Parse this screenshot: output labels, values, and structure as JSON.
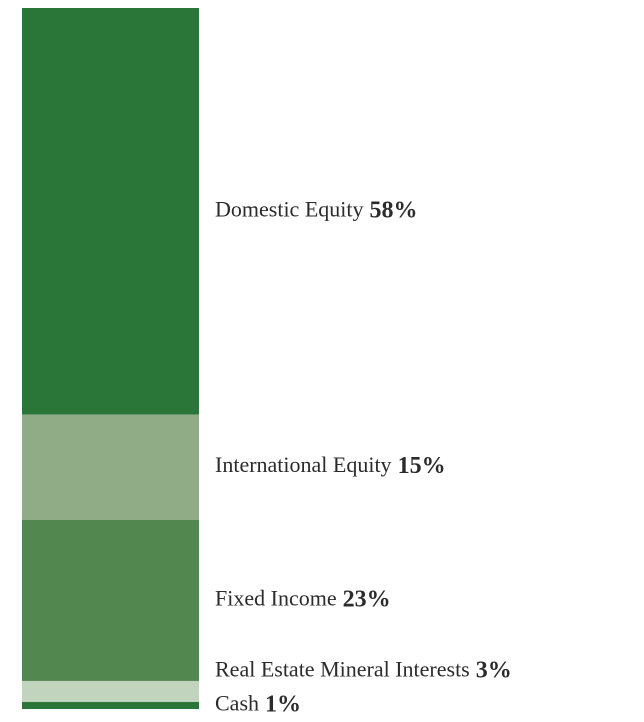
{
  "chart_data": {
    "type": "stacked-bar",
    "series": [
      {
        "name": "Domestic Equity",
        "color": "#2a7639",
        "values": [
          58
        ],
        "value_labels": [
          "58%"
        ]
      },
      {
        "name": "International Equity",
        "color": "#8fac86",
        "values": [
          15
        ],
        "value_labels": [
          "15%"
        ]
      },
      {
        "name": "Fixed Income",
        "color": "#52884f",
        "values": [
          23
        ],
        "value_labels": [
          "23%"
        ]
      },
      {
        "name": "Real Estate Mineral Interests",
        "color": "#c1d4bd",
        "values": [
          3
        ],
        "value_labels": [
          "3%"
        ]
      },
      {
        "name": "Cash",
        "color": "#2a7639",
        "values": [
          1
        ],
        "value_labels": [
          "1%"
        ]
      }
    ],
    "ylim": [
      0,
      100
    ]
  }
}
